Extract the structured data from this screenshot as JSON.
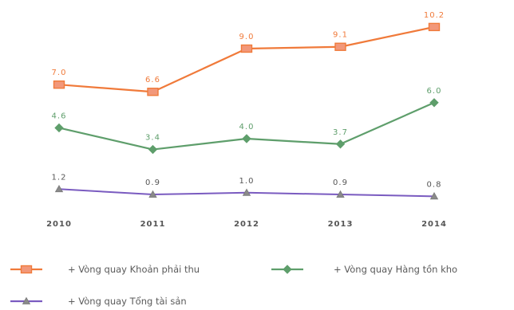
{
  "chart_data": {
    "type": "line",
    "categories": [
      "2010",
      "2011",
      "2012",
      "2013",
      "2014"
    ],
    "series": [
      {
        "name": "+ Vòng quay Khoản phải thu",
        "values": [
          7.0,
          6.6,
          9.0,
          9.1,
          10.2
        ],
        "labels": [
          "7.0",
          "6.6",
          "9.0",
          "9.1",
          "10.2"
        ],
        "color": "#F07A3A",
        "marker": "square"
      },
      {
        "name": "+ Vòng quay Hàng tồn kho",
        "values": [
          4.6,
          3.4,
          4.0,
          3.7,
          6.0
        ],
        "labels": [
          "4.6",
          "3.4",
          "4.0",
          "3.7",
          "6.0"
        ],
        "color": "#5E9E6B",
        "marker": "diamond"
      },
      {
        "name": "+ Vòng quay Tổng tài sản",
        "values": [
          1.2,
          0.9,
          1.0,
          0.9,
          0.8
        ],
        "labels": [
          "1.2",
          "0.9",
          "1.0",
          "0.9",
          "0.8"
        ],
        "color": "#7A5BC0",
        "marker": "triangle"
      }
    ],
    "ylim": [
      0,
      11
    ],
    "grid": false,
    "legend_position": "bottom"
  }
}
